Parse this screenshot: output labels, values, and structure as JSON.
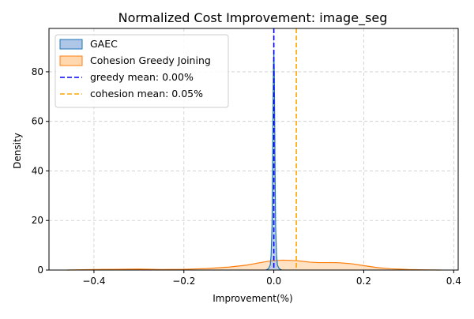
{
  "chart_data": {
    "type": "area",
    "title": "Normalized Cost Improvement: image_seg",
    "xlabel": "Improvement(%)",
    "ylabel": "Density",
    "xlim": [
      -0.5,
      0.41
    ],
    "ylim": [
      0,
      97.5
    ],
    "xticks": [
      -0.4,
      -0.2,
      0.0,
      0.2,
      0.4
    ],
    "xtick_labels": [
      "−0.4",
      "−0.2",
      "0.0",
      "0.2",
      "0.4"
    ],
    "yticks": [
      0,
      20,
      40,
      60,
      80
    ],
    "ytick_labels": [
      "0",
      "20",
      "40",
      "60",
      "80"
    ],
    "grid": true,
    "legend_position": "top-left",
    "series": [
      {
        "name": "GAEC",
        "kind": "kde",
        "line_color": "#1f77b4",
        "fill_color": "#aec7e8",
        "x": [
          -0.018,
          -0.012,
          -0.008,
          -0.006,
          -0.004,
          -0.003,
          -0.002,
          -0.001,
          0.0,
          0.001,
          0.002,
          0.003,
          0.004,
          0.006,
          0.008,
          0.012,
          0.018
        ],
        "y": [
          0,
          0.5,
          2,
          6,
          18,
          35,
          60,
          80,
          88,
          80,
          60,
          35,
          18,
          6,
          2,
          0.5,
          0
        ]
      },
      {
        "name": "Cohesion Greedy Joining",
        "kind": "kde",
        "line_color": "#ff7f0e",
        "fill_color": "#ffd8b0",
        "x": [
          -0.46,
          -0.4,
          -0.35,
          -0.3,
          -0.25,
          -0.2,
          -0.15,
          -0.1,
          -0.06,
          -0.03,
          -0.01,
          0.0,
          0.02,
          0.05,
          0.08,
          0.1,
          0.14,
          0.17,
          0.2,
          0.23,
          0.26,
          0.3,
          0.33,
          0.37
        ],
        "y": [
          0,
          0.2,
          0.3,
          0.4,
          0.2,
          0.3,
          0.6,
          1.2,
          2.0,
          3.0,
          3.6,
          3.8,
          4.0,
          3.8,
          3.2,
          3.0,
          3.0,
          2.6,
          1.8,
          1.0,
          0.5,
          0.2,
          0.1,
          0
        ]
      }
    ],
    "reference_lines": [
      {
        "name": "greedy mean: 0.00%",
        "x": 0.0,
        "color": "#0000ff",
        "style": "dashed"
      },
      {
        "name": "cohesion mean: 0.05%",
        "x": 0.05,
        "color": "#ffa500",
        "style": "dashed"
      }
    ]
  }
}
